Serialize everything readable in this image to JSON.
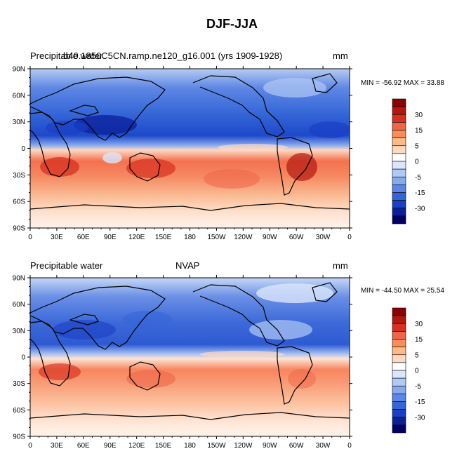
{
  "figure": {
    "title": "DJF-JJA"
  },
  "panels": [
    {
      "left_title": "Precipitable water",
      "center_title": "b40.1850C5CN.ramp.ne120_g16.001 (yrs 1909-1928)",
      "units": "mm",
      "minmax": "MIN = -56.92 MAX =  33.88"
    },
    {
      "left_title": "Precipitable water",
      "center_title": "NVAP",
      "units": "mm",
      "minmax": "MIN = -44.50 MAX =  25.54"
    }
  ],
  "axes": {
    "lat_ticks": [
      "90N",
      "60N",
      "30N",
      "0",
      "30S",
      "60S",
      "90S"
    ],
    "lon_ticks": [
      "0",
      "30E",
      "60E",
      "90E",
      "120E",
      "150E",
      "180",
      "150W",
      "120W",
      "90W",
      "60W",
      "30W",
      "0"
    ]
  },
  "colorbar": {
    "labels": [
      "30",
      "15",
      "5",
      "0",
      "-5",
      "-15",
      "-30"
    ],
    "colors": [
      "#8b0000",
      "#b3180f",
      "#d7301f",
      "#ef6548",
      "#fc8d59",
      "#fdbb84",
      "#fdd9c4",
      "#ffffff",
      "#d9e6fb",
      "#b0c9f5",
      "#87aaee",
      "#5b85e6",
      "#3464d9",
      "#1a3fc4",
      "#0b1f99",
      "#000066"
    ]
  },
  "chart_data": {
    "type": "heatmap",
    "title": "DJF-JJA",
    "ylabel": "",
    "xlabel": "",
    "units": "mm",
    "lon_range": [
      0,
      360
    ],
    "lat_range": [
      -90,
      90
    ],
    "contour_levels": [
      -35,
      -30,
      -25,
      -20,
      -15,
      -10,
      -5,
      -2,
      0,
      2,
      5,
      10,
      15,
      20,
      25,
      30,
      35
    ],
    "series": [
      {
        "name": "b40.1850C5CN.ramp.ne120_g16.001 (yrs 1909-1928)",
        "min": -56.92,
        "max": 33.88
      },
      {
        "name": "NVAP",
        "min": -44.5,
        "max": 25.54
      }
    ]
  }
}
